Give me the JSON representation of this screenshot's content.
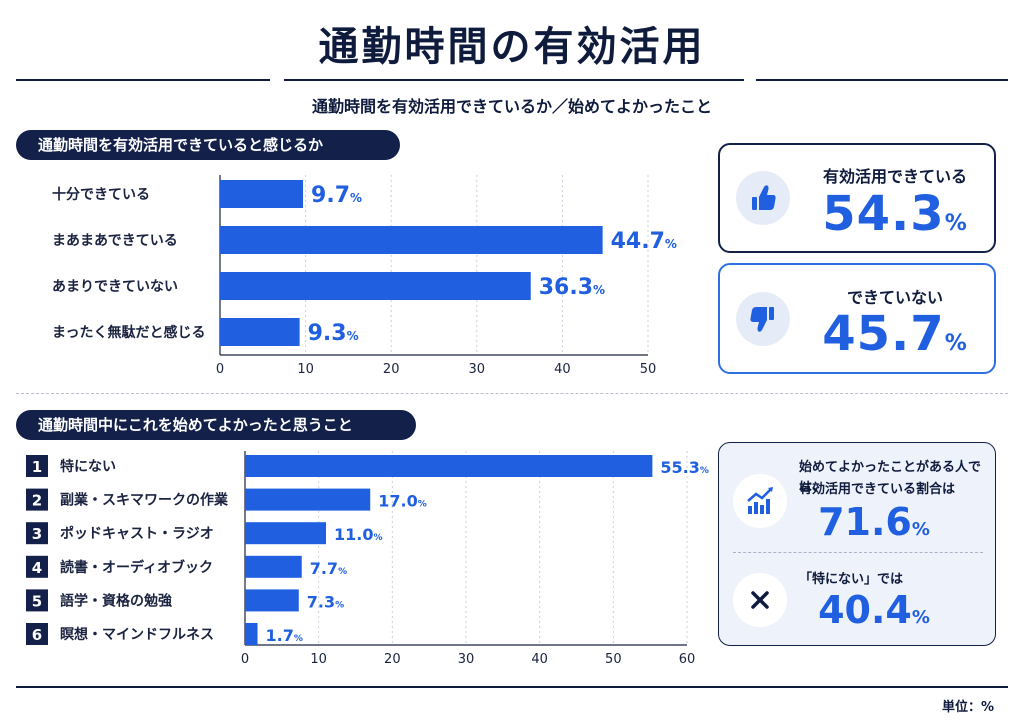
{
  "header": {
    "title": "通勤時間の有効活用",
    "subtitle": "通勤時間を有効活用できているか／始めてよかったこと"
  },
  "colors": {
    "navy": "#13204a",
    "bar": "#1f5fe0"
  },
  "chart_data": [
    {
      "type": "bar",
      "orientation": "horizontal",
      "title": "通勤時間を有効活用できていると感じるか",
      "categories": [
        "十分できている",
        "まあまあできている",
        "あまりできていない",
        "まったく無駄だと感じる"
      ],
      "values": [
        9.7,
        44.7,
        36.3,
        9.3
      ],
      "xlim": [
        0,
        50
      ],
      "xticks": [
        0,
        10,
        20,
        30,
        40,
        50
      ],
      "grid": true
    },
    {
      "type": "bar",
      "orientation": "horizontal",
      "title": "通勤時間中にこれを始めてよかったと思うこと",
      "ranks": [
        "1",
        "2",
        "3",
        "4",
        "5",
        "6"
      ],
      "categories": [
        "特にない",
        "副業・スキマワークの作業",
        "ポッドキャスト・ラジオ",
        "読書・オーディオブック",
        "語学・資格の勉強",
        "瞑想・マインドフルネス"
      ],
      "values": [
        55.3,
        17.0,
        11.0,
        7.7,
        7.3,
        1.7
      ],
      "xlim": [
        0,
        60
      ],
      "xticks": [
        0,
        10,
        20,
        30,
        40,
        50,
        60
      ],
      "grid": true
    }
  ],
  "summary": {
    "effective": {
      "label": "有効活用できている",
      "value": "54.3",
      "unit": "%",
      "icon": "thumbs-up-icon"
    },
    "not_effective": {
      "label": "できていない",
      "value": "45.7",
      "unit": "%",
      "icon": "thumbs-down-icon"
    },
    "started": {
      "line1": "始めてよかったことがある人では、",
      "line2": "有効活用できている割合は",
      "value": "71.6",
      "unit": "%",
      "icon": "chart-up-icon"
    },
    "nothing": {
      "label": "「特にない」では",
      "value": "40.4",
      "unit": "%",
      "icon": "close-icon"
    }
  },
  "footer": {
    "unit_note": "単位：%"
  }
}
